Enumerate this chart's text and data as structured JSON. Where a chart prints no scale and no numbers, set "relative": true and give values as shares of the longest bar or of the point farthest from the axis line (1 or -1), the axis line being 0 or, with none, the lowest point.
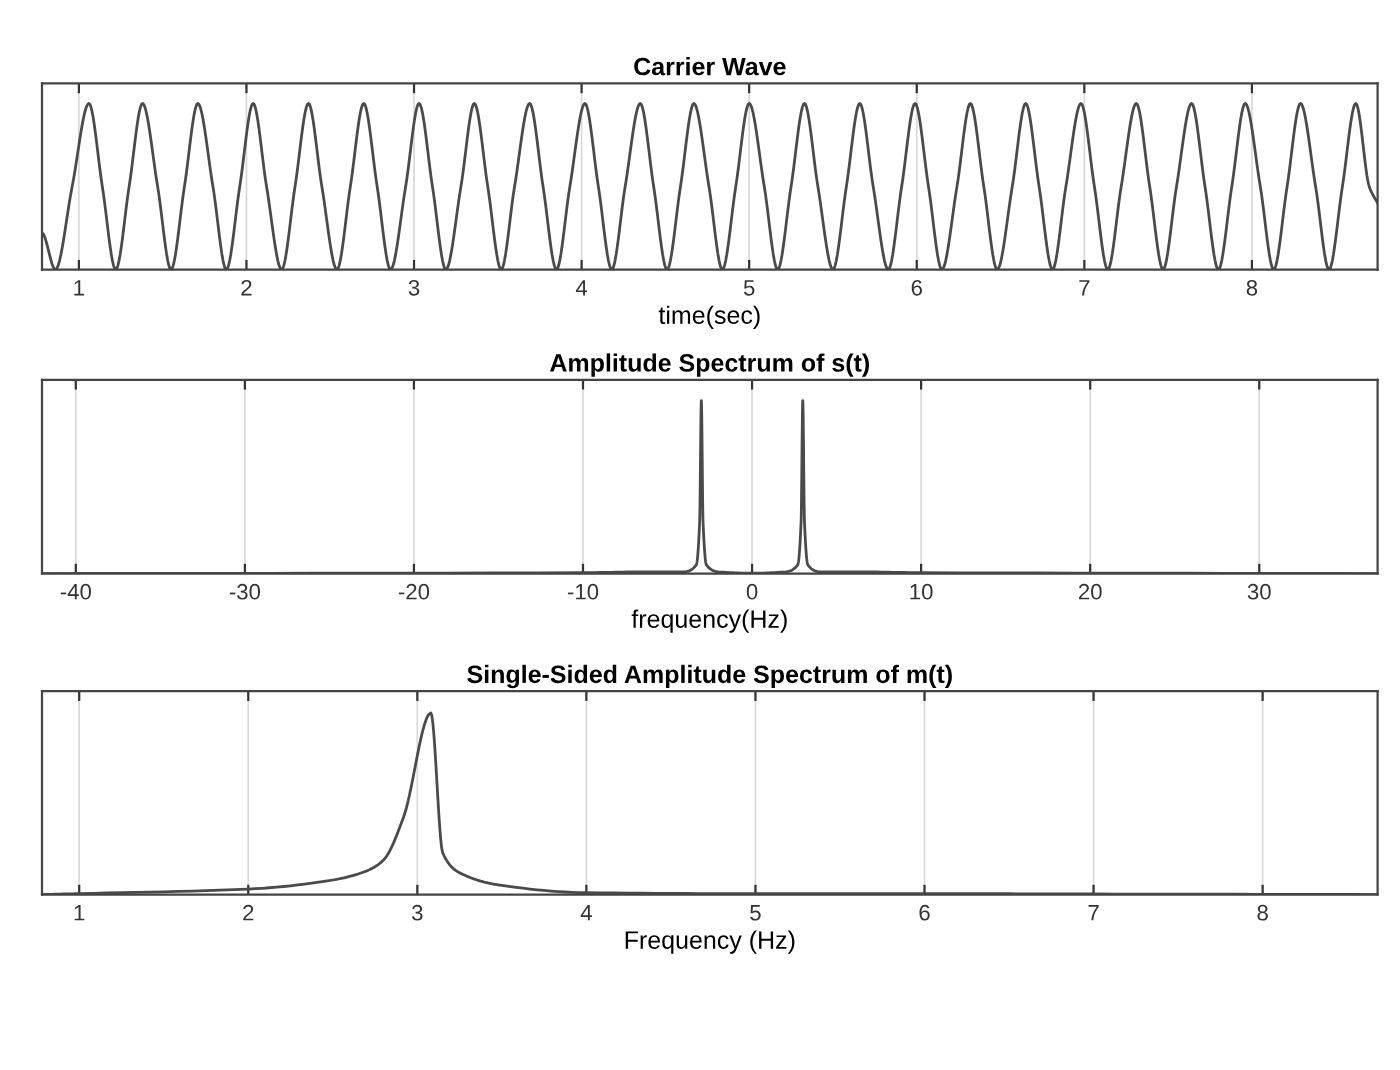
{
  "chart_data": [
    {
      "type": "line",
      "title": "Carrier Wave",
      "xlabel": "time(sec)",
      "relative": true,
      "grid": "x",
      "tick_labels": "x",
      "xlim": [
        0.78,
        8.75
      ],
      "xticks": [
        1,
        2,
        3,
        4,
        5,
        6,
        7,
        8
      ],
      "series": [
        {
          "color": "#4a4a4a",
          "x": [
            0.78,
            0.86,
            0.96,
            1.06,
            1.14,
            1.22,
            1.3,
            1.38,
            1.47,
            1.55,
            1.63,
            1.71,
            1.8,
            1.88,
            1.96,
            2.04,
            2.12,
            2.21,
            2.29,
            2.37,
            2.45,
            2.54,
            2.62,
            2.7,
            2.78,
            2.86,
            2.95,
            3.03,
            3.11,
            3.19,
            3.28,
            3.36,
            3.44,
            3.52,
            3.6,
            3.69,
            3.77,
            3.85,
            3.93,
            4.02,
            4.1,
            4.18,
            4.26,
            4.35,
            4.43,
            4.51,
            4.59,
            4.67,
            4.76,
            4.84,
            4.92,
            5.0,
            5.09,
            5.17,
            5.25,
            5.33,
            5.41,
            5.5,
            5.58,
            5.66,
            5.74,
            5.83,
            5.91,
            5.99,
            6.07,
            6.15,
            6.24,
            6.32,
            6.4,
            6.48,
            6.57,
            6.65,
            6.73,
            6.81,
            6.89,
            6.98,
            7.06,
            7.14,
            7.22,
            7.31,
            7.39,
            7.47,
            7.55,
            7.64,
            7.72,
            7.8,
            7.88,
            7.96,
            8.05,
            8.13,
            8.21,
            8.29,
            8.38,
            8.46,
            8.54,
            8.62,
            8.7,
            8.75
          ],
          "values": [
            0.22,
            0,
            0.5,
            1,
            0.5,
            0,
            0.5,
            1,
            0.5,
            0,
            0.5,
            1,
            0.5,
            0,
            0.5,
            1,
            0.5,
            0,
            0.5,
            1,
            0.5,
            0,
            0.5,
            1,
            0.5,
            0,
            0.5,
            1,
            0.5,
            0,
            0.5,
            1,
            0.5,
            0,
            0.5,
            1,
            0.5,
            0,
            0.5,
            1,
            0.5,
            0,
            0.5,
            1,
            0.5,
            0,
            0.5,
            1,
            0.5,
            0,
            0.5,
            1,
            0.5,
            0,
            0.5,
            1,
            0.5,
            0,
            0.5,
            1,
            0.5,
            0,
            0.5,
            1,
            0.5,
            0,
            0.5,
            1,
            0.5,
            0,
            0.5,
            1,
            0.5,
            0,
            0.5,
            1,
            0.5,
            0,
            0.5,
            1,
            0.5,
            0,
            0.5,
            1,
            0.5,
            0,
            0.5,
            1,
            0.5,
            0,
            0.5,
            1,
            0.5,
            0,
            0.5,
            1,
            0.5,
            0.4
          ]
        }
      ]
    },
    {
      "type": "line",
      "title": "Amplitude Spectrum of s(t)",
      "xlabel": "frequency(Hz)",
      "relative": true,
      "grid": "x",
      "tick_labels": "x",
      "xlim": [
        -42,
        37
      ],
      "xticks": [
        -40,
        -30,
        -20,
        -10,
        0,
        10,
        20,
        30
      ],
      "series": [
        {
          "color": "#4a4a4a",
          "x": [
            -42,
            -10,
            -6,
            -4,
            -3.3,
            -3.1,
            -3.0,
            -2.9,
            -2.7,
            -2,
            0,
            2,
            2.7,
            2.9,
            3.0,
            3.1,
            3.3,
            4,
            6,
            10,
            37
          ],
          "values": [
            0,
            0.005,
            0.01,
            0.01,
            0.05,
            0.3,
            1,
            0.3,
            0.05,
            0.01,
            0.002,
            0.01,
            0.05,
            0.3,
            1,
            0.3,
            0.05,
            0.01,
            0.01,
            0.005,
            0
          ]
        }
      ]
    },
    {
      "type": "line",
      "title": "Single-Sided Amplitude Spectrum of m(t)",
      "xlabel": "Frequency (Hz)",
      "relative": true,
      "grid": "x",
      "tick_labels": "x",
      "xlim": [
        0.78,
        8.68
      ],
      "xticks": [
        1,
        2,
        3,
        4,
        5,
        6,
        7,
        8
      ],
      "series": [
        {
          "color": "#4a4a4a",
          "x": [
            0.78,
            1,
            2,
            2.5,
            2.7,
            2.8,
            2.92,
            3.08,
            3.15,
            3.25,
            3.5,
            4,
            5,
            6,
            7,
            8.68
          ],
          "values": [
            0,
            0.005,
            0.03,
            0.08,
            0.13,
            0.19,
            0.43,
            1,
            0.23,
            0.12,
            0.05,
            0.01,
            0.005,
            0.005,
            0.003,
            0
          ]
        }
      ]
    }
  ]
}
